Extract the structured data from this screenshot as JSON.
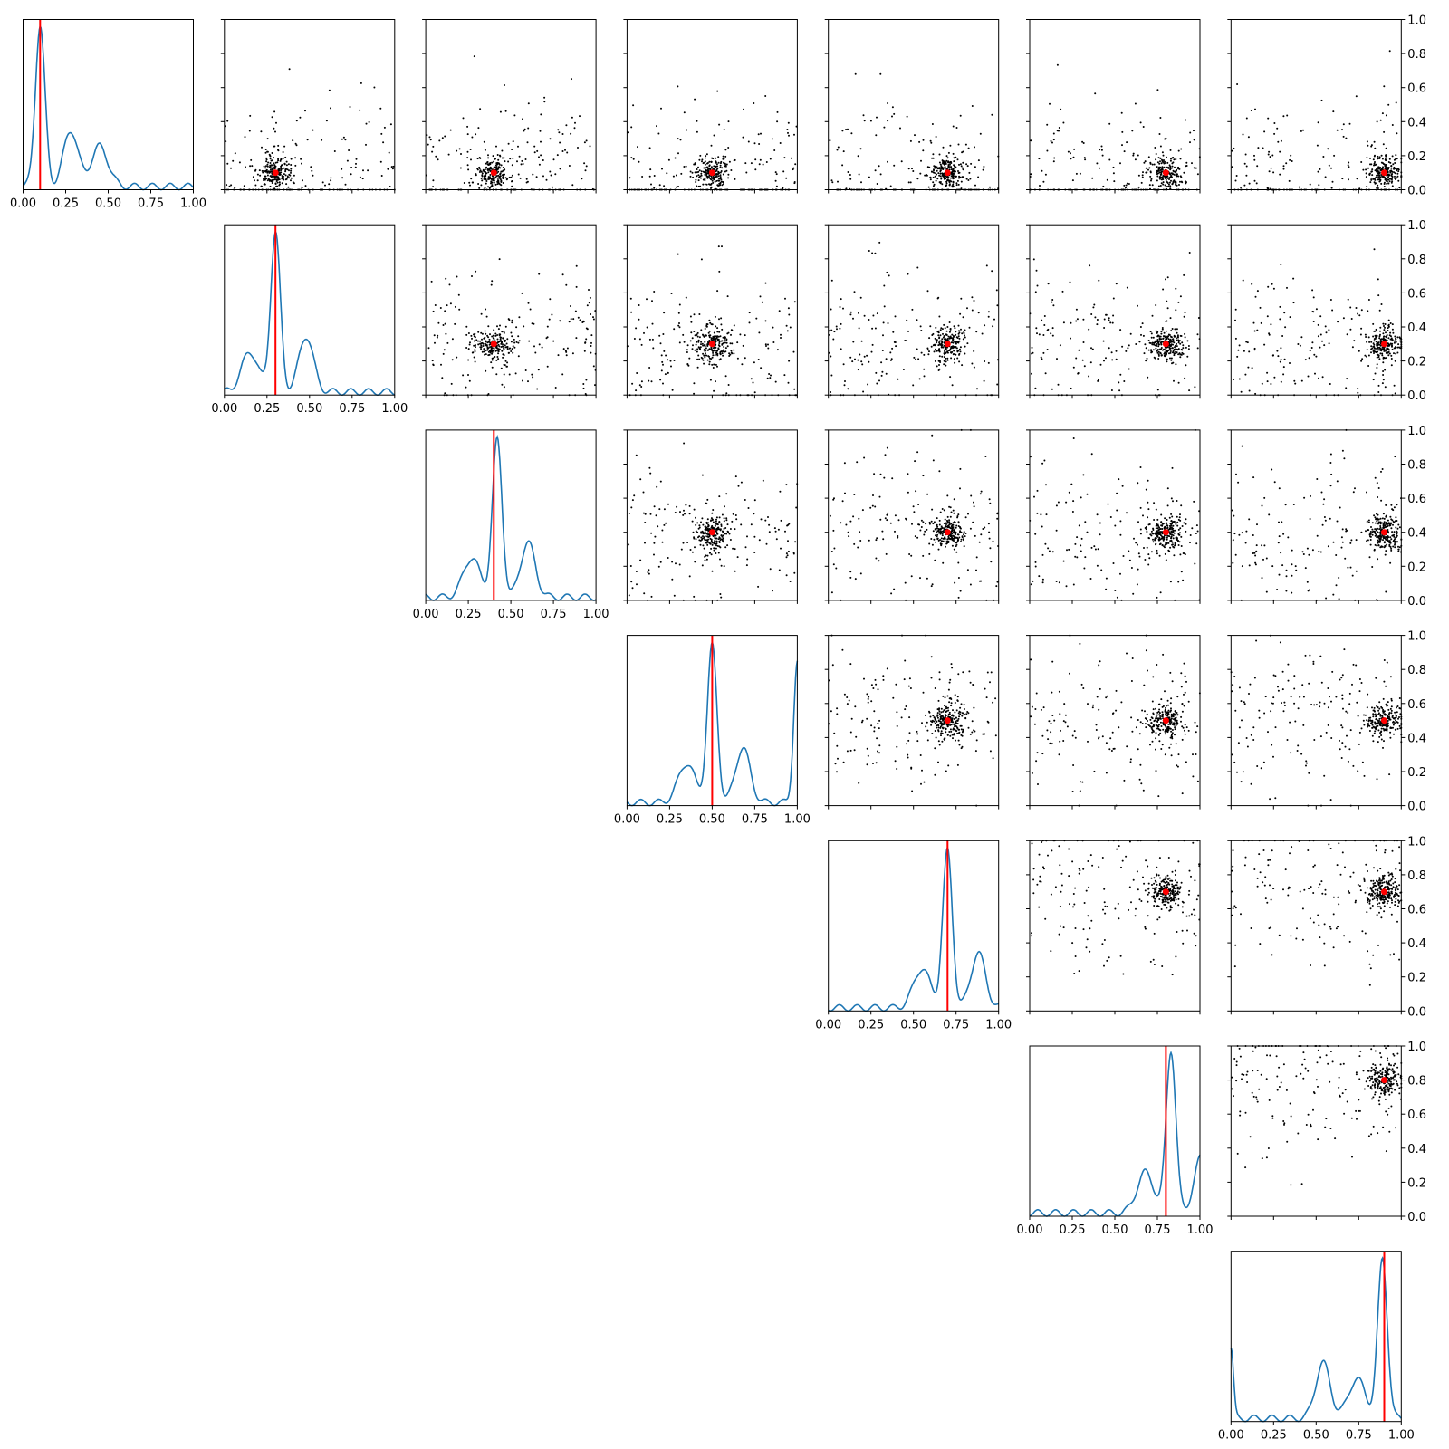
{
  "chart_data": {
    "type": "pairplot",
    "n_params": 7,
    "axis_range": [
      0,
      1
    ],
    "tick_values": [
      0.0,
      0.25,
      0.5,
      0.75,
      1.0
    ],
    "tick_labels": [
      "0.00",
      "0.25",
      "0.50",
      "0.75",
      "1.00"
    ],
    "right_tick_values": [
      0.0,
      0.2,
      0.4,
      0.6,
      0.8,
      1.0
    ],
    "right_tick_labels": [
      "0.0",
      "0.2",
      "0.4",
      "0.6",
      "0.8",
      "1.0"
    ],
    "true_values": [
      0.1,
      0.3,
      0.4,
      0.5,
      0.7,
      0.8,
      0.9
    ],
    "kde_color": "#1f77b4",
    "reference_color": "#ff0000",
    "scatter_color": "#000000",
    "kde_peak_locations": [
      0.1,
      0.3,
      0.42,
      0.5,
      0.7,
      0.83,
      0.89
    ],
    "layout": "upper-triangle: density plots on the diagonal, pairwise sample scatter plots above the diagonal"
  }
}
